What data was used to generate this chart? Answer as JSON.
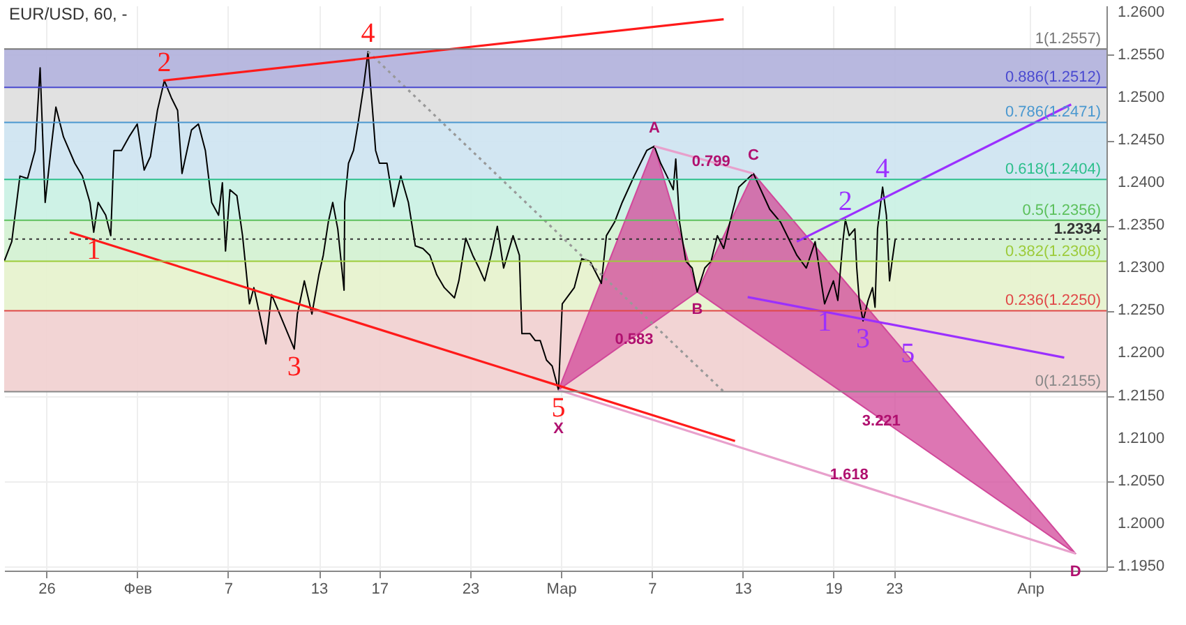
{
  "chart_data": {
    "type": "line",
    "title": "EUR/USD, 60, -",
    "xlim": [
      "--01-23T05:00",
      "--04-06T01:00"
    ],
    "ylim": [
      1.1945,
      1.2608
    ],
    "xticks": [
      {
        "value": "--01-26",
        "label": "26"
      },
      {
        "value": "--02-01",
        "label": "Фев"
      },
      {
        "value": "--02-07",
        "label": "7"
      },
      {
        "value": "--02-13",
        "label": "13"
      },
      {
        "value": "--02-17",
        "label": "17"
      },
      {
        "value": "--02-23",
        "label": "23"
      },
      {
        "value": "--03-01",
        "label": "Мар"
      },
      {
        "value": "--03-07",
        "label": "7"
      },
      {
        "value": "--03-13",
        "label": "13"
      },
      {
        "value": "--03-19",
        "label": "19"
      },
      {
        "value": "--03-23",
        "label": "23"
      },
      {
        "value": "--04-01",
        "label": "Апр"
      }
    ],
    "yticks": [
      {
        "value": 1.195,
        "label": "1.1950"
      },
      {
        "value": 1.2,
        "label": "1.2000"
      },
      {
        "value": 1.205,
        "label": "1.2050"
      },
      {
        "value": 1.21,
        "label": "1.2100"
      },
      {
        "value": 1.215,
        "label": "1.2150"
      },
      {
        "value": 1.22,
        "label": "1.2200"
      },
      {
        "value": 1.225,
        "label": "1.2250"
      },
      {
        "value": 1.23,
        "label": "1.2300"
      },
      {
        "value": 1.235,
        "label": "1.2350"
      },
      {
        "value": 1.24,
        "label": "1.2400"
      },
      {
        "value": 1.245,
        "label": "1.2450"
      },
      {
        "value": 1.25,
        "label": "1.2500"
      },
      {
        "value": 1.255,
        "label": "1.2550"
      },
      {
        "value": 1.26,
        "label": "1.2600"
      }
    ],
    "grid": true,
    "marker": "none",
    "series": [
      {
        "type": "line",
        "color": "#000000",
        "x": [
          "--01-23T05:00",
          "--01-23T17:00",
          "--01-24T06:00",
          "--01-24T18:00",
          "--01-25T06:00",
          "--01-25T14:00",
          "--01-25T22:00",
          "--01-26T07:00",
          "--01-26T15:00",
          "--01-27T03:00",
          "--01-27T21:00",
          "--01-28T09:00",
          "--01-28T21:00",
          "--01-29T03:00",
          "--01-29T10:00",
          "--01-29T22:00",
          "--01-30T06:00",
          "--01-30T11:00",
          "--01-30T23:00",
          "--01-31T11:00",
          "--02-01T00:00",
          "--02-01T11:00",
          "--02-01T21:00",
          "--02-02T08:00",
          "--02-02T19:00",
          "--02-03T06:00",
          "--02-03T16:00",
          "--02-03T23:00",
          "--02-04T14:00",
          "--02-05T01:00",
          "--02-05T12:00",
          "--02-05T22:00",
          "--02-06T09:00",
          "--02-06T15:00",
          "--02-06T20:00",
          "--02-07T03:00",
          "--02-07T14:00",
          "--02-07T23:00",
          "--02-08T10:00",
          "--02-08T17:00",
          "--02-09T12:00",
          "--02-09T21:00",
          "--02-10T10:00",
          "--02-11T09:00",
          "--02-11T14:00",
          "--02-12T01:00",
          "--02-12T13:00",
          "--02-13T00:00",
          "--02-13T07:00",
          "--02-13T15:00",
          "--02-13T22:00",
          "--02-14T06:00",
          "--02-14T16:00",
          "--02-14T17:00",
          "--02-14T23:00",
          "--02-15T07:00",
          "--02-15T14:00",
          "--02-15T22:00",
          "--02-16T06:00",
          "--02-16T09:00",
          "--02-16T14:00",
          "--02-16T18:00",
          "--02-17T00:00",
          "--02-17T12:00",
          "--02-17T23:00",
          "--02-18T10:00",
          "--02-18T22:00",
          "--02-19T09:00",
          "--02-19T21:00",
          "--02-20T08:00",
          "--02-20T19:00",
          "--02-21T07:00",
          "--02-21T23:00",
          "--02-22T06:00",
          "--02-22T17:00",
          "--02-23T04:00",
          "--02-23T14:00",
          "--02-23T23:00",
          "--02-24T09:00",
          "--02-24T19:00",
          "--02-25T05:00",
          "--02-25T20:00",
          "--02-26T06:00",
          "--02-26T10:00",
          "--02-26T23:00",
          "--02-27T07:00",
          "--02-27T15:00",
          "--02-28T01:00",
          "--02-28T10:00",
          "--02-28T20:00",
          "--03-01T02:00",
          "--03-01T21:00",
          "--03-02T09:00",
          "--03-02T22:00",
          "--03-03T16:00",
          "--03-04T00:00",
          "--03-04T13:00",
          "--03-05T01:00",
          "--03-05T20:00",
          "--03-06T16:00",
          "--03-07T04:00",
          "--03-07T14:00",
          "--03-08T00:00",
          "--03-08T10:00",
          "--03-08T14:00",
          "--03-08T20:00",
          "--03-09T06:00",
          "--03-09T16:00",
          "--03-10T00:00",
          "--03-10T12:00",
          "--03-10T22:00",
          "--03-11T08:00",
          "--03-11T18:00",
          "--03-12T04:00",
          "--03-12T18:00",
          "--03-13T17:00",
          "--03-14T19:00",
          "--03-15T12:00",
          "--03-16T14:00",
          "--03-17T05:00",
          "--03-17T19:00",
          "--03-18T10:00",
          "--03-19T00:00",
          "--03-19T07:00",
          "--03-19T15:00",
          "--03-19T19:00",
          "--03-20T01:00",
          "--03-20T10:00",
          "--03-20T13:00",
          "--03-20T17:00",
          "--03-20T23:00",
          "--03-21T07:00",
          "--03-21T14:00",
          "--03-21T18:00",
          "--03-21T22:00",
          "--03-22T06:00",
          "--03-22T12:00",
          "--03-22T17:00",
          "--03-22T21:00",
          "--03-23T02:00"
        ],
        "values": [
          1.2308,
          1.2331,
          1.2408,
          1.2405,
          1.2438,
          1.2535,
          1.2377,
          1.2438,
          1.2489,
          1.2454,
          1.2423,
          1.2408,
          1.2377,
          1.2342,
          1.2377,
          1.2362,
          1.2338,
          1.2438,
          1.2438,
          1.2454,
          1.2469,
          1.2415,
          1.2431,
          1.2485,
          1.252,
          1.25,
          1.2485,
          1.2411,
          1.2462,
          1.2469,
          1.2438,
          1.2377,
          1.2362,
          1.24,
          1.232,
          1.2392,
          1.2385,
          1.2338,
          1.2258,
          1.2277,
          1.2211,
          1.2269,
          1.2246,
          1.2205,
          1.2246,
          1.2285,
          1.2246,
          1.2292,
          1.2315,
          1.2354,
          1.2377,
          1.2346,
          1.2274,
          1.2377,
          1.2423,
          1.2438,
          1.2469,
          1.2508,
          1.2554,
          1.2523,
          1.2477,
          1.2438,
          1.2423,
          1.2423,
          1.2372,
          1.2408,
          1.2377,
          1.2326,
          1.2323,
          1.2315,
          1.2292,
          1.2277,
          1.2265,
          1.2285,
          1.2335,
          1.2315,
          1.23,
          1.2285,
          1.2315,
          1.2349,
          1.23,
          1.2338,
          1.2315,
          1.2223,
          1.2223,
          1.2215,
          1.2215,
          1.2192,
          1.2185,
          1.2157,
          1.2258,
          1.2277,
          1.2311,
          1.2308,
          1.2282,
          1.2338,
          1.2354,
          1.2377,
          1.2408,
          1.2438,
          1.2443,
          1.2423,
          1.2408,
          1.2392,
          1.2428,
          1.2354,
          1.2308,
          1.23,
          1.2272,
          1.23,
          1.2308,
          1.2338,
          1.2323,
          1.2354,
          1.2395,
          1.2411,
          1.2369,
          1.2354,
          1.2315,
          1.23,
          1.2331,
          1.2258,
          1.2285,
          1.2262,
          1.2331,
          1.2357,
          1.2338,
          1.2346,
          1.23,
          1.2262,
          1.2238,
          1.2262,
          1.2277,
          1.2254,
          1.2346,
          1.2395,
          1.2362,
          1.2285,
          1.2308,
          1.2334
        ]
      },
      {
        "type": "area",
        "color": "#d1489a",
        "x": [
          "--02-28T20:00",
          "--03-07T04:00",
          "--03-10T00:00",
          "--02-28T20:00"
        ],
        "values": [
          1.2157,
          1.2443,
          1.2272,
          1.2157
        ]
      },
      {
        "type": "area",
        "color": "#d1489a",
        "x": [
          "--03-10T00:00",
          "--03-13T17:00",
          "--04-04T00:00",
          "--03-10T00:00"
        ],
        "values": [
          1.2272,
          1.2411,
          1.1965,
          1.2272
        ]
      },
      {
        "type": "line",
        "color": "#e8a0cc",
        "x": [
          "--03-07T04:00",
          "--03-13T17:00"
        ],
        "values": [
          1.2443,
          1.2411
        ]
      },
      {
        "type": "line",
        "color": "#e8a0cc",
        "x": [
          "--02-28T20:00",
          "--04-04T00:00"
        ],
        "values": [
          1.2157,
          1.1965
        ]
      },
      {
        "type": "line",
        "color": "#999999",
        "line_style": "dotted",
        "x": [
          "--02-16T06:00",
          "--03-11T18:00"
        ],
        "values": [
          1.2554,
          1.2155
        ]
      },
      {
        "type": "line",
        "color": "#ff1a1a",
        "x": [
          "--02-02T17:00",
          "--03-11T18:00"
        ],
        "values": [
          1.252,
          1.2592
        ]
      },
      {
        "type": "line",
        "color": "#ff1a1a",
        "x": [
          "--01-27T13:00",
          "--03-12T12:00"
        ],
        "values": [
          1.2342,
          1.2097
        ]
      },
      {
        "type": "line",
        "color": "#9b30ff",
        "x": [
          "--03-16T14:00",
          "--04-03T17:00"
        ],
        "values": [
          1.2331,
          1.2492
        ]
      },
      {
        "type": "line",
        "color": "#9b30ff",
        "x": [
          "--03-13T08:00",
          "--04-03T06:00"
        ],
        "values": [
          1.2266,
          1.2195
        ]
      }
    ],
    "bands": [
      {
        "axis": "y",
        "from": 1.2512,
        "to": 1.2557,
        "color": "#b0b0dc"
      },
      {
        "axis": "y",
        "from": 1.2471,
        "to": 1.2512,
        "color": "#dedede"
      },
      {
        "axis": "y",
        "from": 1.2404,
        "to": 1.2471,
        "color": "#cde3f1"
      },
      {
        "axis": "y",
        "from": 1.2356,
        "to": 1.2404,
        "color": "#c9f1e3"
      },
      {
        "axis": "y",
        "from": 1.2308,
        "to": 1.2356,
        "color": "#d2f1d0"
      },
      {
        "axis": "y",
        "from": 1.225,
        "to": 1.2308,
        "color": "#e6f2cc"
      },
      {
        "axis": "y",
        "from": 1.2155,
        "to": 1.225,
        "color": "#f1cfcf"
      }
    ],
    "ref_lines": [
      {
        "axis": "y",
        "value": 1.2557,
        "label": "1(1.2557)",
        "color": "#777777"
      },
      {
        "axis": "y",
        "value": 1.2512,
        "label": "0.886(1.2512)",
        "color": "#4a4ad0"
      },
      {
        "axis": "y",
        "value": 1.2471,
        "label": "0.786(1.2471)",
        "color": "#4a98d0"
      },
      {
        "axis": "y",
        "value": 1.2404,
        "label": "0.618(1.2404)",
        "color": "#2dbf8c"
      },
      {
        "axis": "y",
        "value": 1.2356,
        "label": "0.5(1.2356)",
        "color": "#5cc05c"
      },
      {
        "axis": "y",
        "value": 1.2308,
        "label": "0.382(1.2308)",
        "color": "#9ccb3a"
      },
      {
        "axis": "y",
        "value": 1.225,
        "label": "0.236(1.2250)",
        "color": "#e04848"
      },
      {
        "axis": "y",
        "value": 1.2155,
        "label": "0(1.2155)",
        "color": "#888888"
      },
      {
        "axis": "y",
        "value": 1.2334,
        "label": "1.2334",
        "color": "#333333",
        "line_style": "dotted"
      }
    ],
    "annotations": [
      {
        "text": "1",
        "x": "--01-29T03:00",
        "y": 1.2342
      },
      {
        "text": "2",
        "x": "--02-02T19:00",
        "y": 1.252
      },
      {
        "text": "3",
        "x": "--02-11T09:00",
        "y": 1.2205
      },
      {
        "text": "4",
        "x": "--02-16T06:00",
        "y": 1.2554
      },
      {
        "text": "5",
        "x": "--02-28T20:00",
        "y": 1.2157
      },
      {
        "text": "1",
        "x": "--03-18T10:00",
        "y": 1.2258
      },
      {
        "text": "2",
        "x": "--03-19T19:00",
        "y": 1.2357
      },
      {
        "text": "3",
        "x": "--03-20T23:00",
        "y": 1.2238
      },
      {
        "text": "4",
        "x": "--03-22T06:00",
        "y": 1.2395
      },
      {
        "text": "5",
        "x": "--03-23T22:00",
        "y": 1.2229
      },
      {
        "text": "X",
        "x": "--02-28T20:00",
        "y": 1.2157
      },
      {
        "text": "A",
        "x": "--03-07T04:00",
        "y": 1.2443
      },
      {
        "text": "B",
        "x": "--03-10T00:00",
        "y": 1.2272
      },
      {
        "text": "C",
        "x": "--03-13T17:00",
        "y": 1.2411
      },
      {
        "text": "D",
        "x": "--04-04T00:00",
        "y": 1.1965
      },
      {
        "text": "0.583",
        "x": "--03-05T20:00",
        "y": 1.2216
      },
      {
        "text": "0.799",
        "x": "--03-10T22:00",
        "y": 1.2425
      },
      {
        "text": "3.221",
        "x": "--03-22T04:00",
        "y": 1.212
      },
      {
        "text": "1.618",
        "x": "--03-20T01:00",
        "y": 1.2057
      }
    ]
  }
}
